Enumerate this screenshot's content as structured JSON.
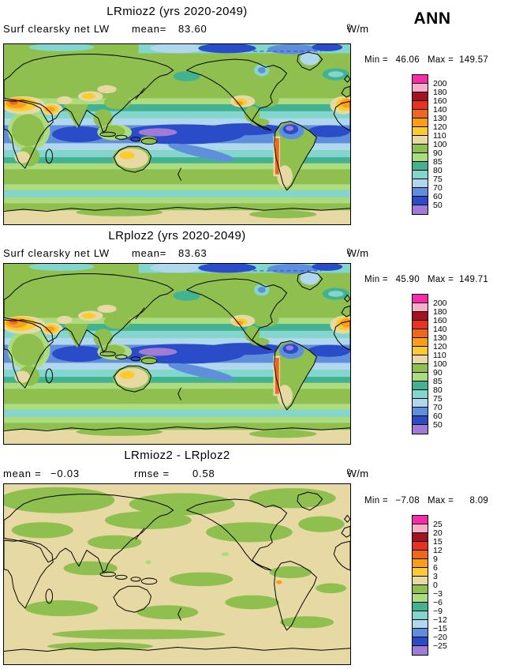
{
  "season": "ANN",
  "units": {
    "base": "W/m",
    "exp": "2"
  },
  "panels": [
    {
      "title": "LRmioz2 (yrs 2020-2049)",
      "var_label": "Surf clearsky net LW",
      "mean_label": "mean=",
      "mean_value": "83.60",
      "min_label": "Min =",
      "min_value": "46.06",
      "max_label": "Max =",
      "max_value": "149.57"
    },
    {
      "title": "LRploz2 (yrs 2020-2049)",
      "var_label": "Surf clearsky net LW",
      "mean_label": "mean=",
      "mean_value": "83.63",
      "min_label": "Min =",
      "min_value": "45.90",
      "max_label": "Max =",
      "max_value": "149.71"
    },
    {
      "title": "LRmioz2 - LRploz2",
      "mean_label": "mean =",
      "mean_value": "−0.03",
      "rmse_label": "rmse =",
      "rmse_value": "0.58",
      "min_label": "Min =",
      "min_value": "−7.08",
      "max_label": "Max =",
      "max_value": "8.09"
    }
  ],
  "colorbars": {
    "lw": {
      "labels": [
        "200",
        "180",
        "160",
        "140",
        "130",
        "120",
        "110",
        "100",
        "90",
        "85",
        "80",
        "75",
        "70",
        "60",
        "50"
      ]
    },
    "diff": {
      "labels": [
        "25",
        "20",
        "15",
        "12",
        "9",
        "6",
        "3",
        "0",
        "−3",
        "−6",
        "−9",
        "−12",
        "−15",
        "−20",
        "−25"
      ]
    }
  },
  "palette": [
    "#FB29AC",
    "#F6AECB",
    "#A5121F",
    "#E43322",
    "#F0661C",
    "#F99D1C",
    "#FDCB2F",
    "#E7D9A4",
    "#8FC04F",
    "#ACDC7F",
    "#43B293",
    "#83D6CD",
    "#AFD8EE",
    "#5F8FDC",
    "#2A4CC8",
    "#A07CD6"
  ],
  "map_colors": {
    "green": "#8FC04F",
    "light_green": "#ACDC7F",
    "teal": "#43B293",
    "cyan": "#83D6CD",
    "pale_blue": "#AFD8EE",
    "blue": "#5F8FDC",
    "dark_blue": "#2A4CC8",
    "purple": "#A07CD6",
    "tan": "#E7D9A4",
    "yellow": "#FDCB2F",
    "orange": "#F99D1C",
    "orange_red": "#F0661C",
    "outline": "#000000"
  },
  "chart_data": [
    {
      "type": "heatmap",
      "subtype": "global-latlon-contour-map",
      "title": "LRmioz2 (yrs 2020-2049)",
      "variable": "Surf clearsky net LW",
      "units": "W/m2",
      "season": "ANN",
      "mean": 83.6,
      "min": 46.06,
      "max": 149.57,
      "contour_levels": [
        50,
        60,
        70,
        75,
        80,
        85,
        90,
        100,
        110,
        120,
        130,
        140,
        160,
        180,
        200
      ],
      "legend_position": "right"
    },
    {
      "type": "heatmap",
      "subtype": "global-latlon-contour-map",
      "title": "LRploz2 (yrs 2020-2049)",
      "variable": "Surf clearsky net LW",
      "units": "W/m2",
      "season": "ANN",
      "mean": 83.63,
      "min": 45.9,
      "max": 149.71,
      "contour_levels": [
        50,
        60,
        70,
        75,
        80,
        85,
        90,
        100,
        110,
        120,
        130,
        140,
        160,
        180,
        200
      ],
      "legend_position": "right"
    },
    {
      "type": "heatmap",
      "subtype": "global-latlon-contour-map",
      "title": "LRmioz2 - LRploz2",
      "units": "W/m2",
      "season": "ANN",
      "mean": -0.03,
      "rmse": 0.58,
      "min": -7.08,
      "max": 8.09,
      "contour_levels": [
        -25,
        -20,
        -15,
        -12,
        -9,
        -6,
        -3,
        0,
        3,
        6,
        9,
        12,
        15,
        20,
        25
      ],
      "legend_position": "right"
    }
  ]
}
